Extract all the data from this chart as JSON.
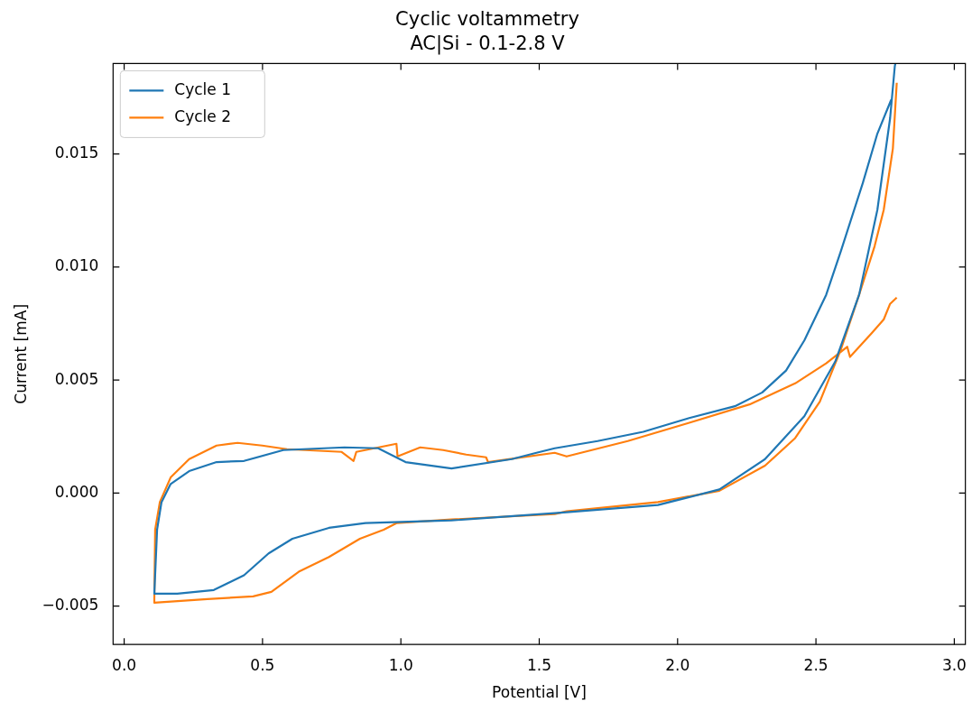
{
  "chart_data": {
    "type": "line",
    "title": "Cyclic voltammetry",
    "subtitle": "AC|Si - 0.1-2.8 V",
    "xlabel": "Potential [V]",
    "ylabel": "Current [mA]",
    "xlim": [
      -0.04,
      3.04
    ],
    "ylim": [
      -0.0067,
      0.019
    ],
    "xticks": [
      {
        "value": 0,
        "label": "0.0"
      },
      {
        "value": 0.5,
        "label": "0.5"
      },
      {
        "value": 1,
        "label": "1.0"
      },
      {
        "value": 1.5,
        "label": "1.5"
      },
      {
        "value": 2,
        "label": "2.0"
      },
      {
        "value": 2.5,
        "label": "2.5"
      },
      {
        "value": 3,
        "label": "3.0"
      }
    ],
    "yticks": [
      {
        "value": -0.005,
        "label": "−0.005"
      },
      {
        "value": 0,
        "label": "0.000"
      },
      {
        "value": 0.005,
        "label": "0.005"
      },
      {
        "value": 0.01,
        "label": "0.010"
      },
      {
        "value": 0.015,
        "label": "0.015"
      }
    ],
    "grid": false,
    "legend": "top left",
    "marker": "none",
    "line_style": "solid",
    "series": [
      {
        "name": "Cycle 1",
        "color": "#1f77b4",
        "x": [
          2.772,
          2.722,
          2.669,
          2.59,
          2.537,
          2.458,
          2.392,
          2.306,
          2.207,
          2.042,
          1.876,
          1.711,
          1.556,
          1.49,
          1.401,
          1.183,
          1.017,
          0.918,
          0.796,
          0.575,
          0.433,
          0.334,
          0.235,
          0.168,
          0.135,
          0.119,
          0.109,
          0.192,
          0.324,
          0.433,
          0.522,
          0.608,
          0.74,
          0.872,
          1.183,
          1.556,
          1.599,
          1.929,
          2.151,
          2.316,
          2.458,
          2.57,
          2.656,
          2.722,
          2.768,
          2.785,
          2.787
        ],
        "values": [
          0.0174,
          0.0159,
          0.0137,
          0.0107,
          0.00877,
          0.00675,
          0.00542,
          0.00445,
          0.00384,
          0.00332,
          0.00271,
          0.0023,
          0.00198,
          0.00178,
          0.0015,
          0.00109,
          0.00137,
          0.00198,
          0.00202,
          0.0019,
          0.00142,
          0.00137,
          0.00097,
          0.0004,
          -0.0004,
          -0.00162,
          -0.00445,
          -0.00445,
          -0.00429,
          -0.00364,
          -0.00267,
          -0.00202,
          -0.00154,
          -0.00133,
          -0.00121,
          -0.00089,
          -0.00085,
          -0.00053,
          0.00016,
          0.0015,
          0.0034,
          0.00582,
          0.00877,
          0.01253,
          0.01658,
          0.01888,
          0.019
        ]
      },
      {
        "name": "Cycle 2",
        "color": "#ff7f0e",
        "x": [
          2.792,
          2.778,
          2.745,
          2.712,
          2.656,
          2.59,
          2.514,
          2.425,
          2.316,
          2.151,
          1.929,
          1.599,
          1.556,
          1.183,
          0.984,
          0.938,
          0.852,
          0.74,
          0.631,
          0.532,
          0.466,
          0.301,
          0.109,
          0.109,
          0.112,
          0.129,
          0.168,
          0.235,
          0.334,
          0.41,
          0.499,
          0.588,
          0.786,
          0.829,
          0.839,
          0.984,
          0.988,
          1.07,
          1.153,
          1.236,
          1.308,
          1.315,
          1.556,
          1.599,
          1.82,
          2.042,
          2.26,
          2.425,
          2.537,
          2.613,
          2.623,
          2.702,
          2.745,
          2.768,
          2.792
        ],
        "values": [
          0.01815,
          0.01524,
          0.01253,
          0.01092,
          0.00877,
          0.00635,
          0.00404,
          0.00243,
          0.00121,
          0.0001,
          -0.0004,
          -0.00081,
          -0.00093,
          -0.00117,
          -0.00133,
          -0.00162,
          -0.00202,
          -0.00283,
          -0.00348,
          -0.00437,
          -0.00457,
          -0.00469,
          -0.00485,
          -0.00469,
          -0.00162,
          -0.0004,
          0.00069,
          0.0015,
          0.0021,
          0.00222,
          0.0021,
          0.00194,
          0.00182,
          0.00142,
          0.00182,
          0.00218,
          0.00162,
          0.00202,
          0.0019,
          0.0017,
          0.00158,
          0.00137,
          0.00178,
          0.00162,
          0.0023,
          0.00311,
          0.00392,
          0.00485,
          0.00574,
          0.00647,
          0.00602,
          0.00708,
          0.00768,
          0.00837,
          0.00865
        ]
      }
    ]
  }
}
